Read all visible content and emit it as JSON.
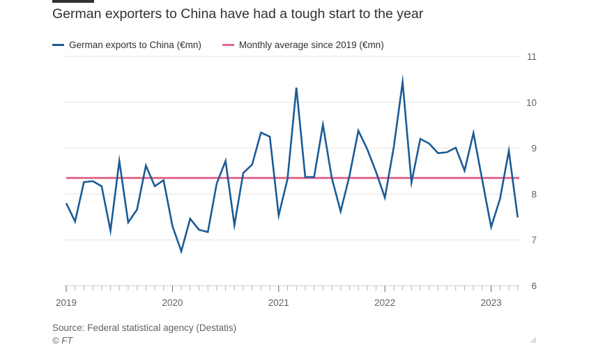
{
  "title": "German exporters to China have had a tough start to the year",
  "source": "Source: Federal statistical agency (Destatis)",
  "credit": "© FT",
  "colors": {
    "series": "#1b5b96",
    "average": "#e16a8c",
    "grid": "#e6e3df",
    "axis": "#66605c",
    "ticks": "#b8b4b0"
  },
  "chart_data": {
    "type": "line",
    "title": "German exporters to China have had a tough start to the year",
    "xlabel": "",
    "ylabel": "",
    "ylim": [
      6,
      11
    ],
    "yticks": [
      6,
      7,
      8,
      9,
      10,
      11
    ],
    "y_axis_side": "right",
    "grid": true,
    "start": "2019-01",
    "xtick_labels": [
      "2019",
      "2020",
      "2021",
      "2022",
      "2023"
    ],
    "legend_position": "top-left",
    "series": [
      {
        "name": "German exports to China (€mn)",
        "color": "#1b5b96",
        "values": [
          7.8,
          7.4,
          8.26,
          8.28,
          8.17,
          7.2,
          8.72,
          7.38,
          7.66,
          8.62,
          8.17,
          8.3,
          7.3,
          6.75,
          7.46,
          7.22,
          7.17,
          8.23,
          8.72,
          7.32,
          8.46,
          8.64,
          9.34,
          9.25,
          7.53,
          8.33,
          10.32,
          8.37,
          8.37,
          9.51,
          8.35,
          7.62,
          8.4,
          9.38,
          8.98,
          8.48,
          7.92,
          9.02,
          10.44,
          8.25,
          9.2,
          9.1,
          8.89,
          8.91,
          9.01,
          8.51,
          9.33,
          8.3,
          7.28,
          7.89,
          8.94,
          7.49
        ]
      },
      {
        "name": "Monthly average since 2019 (€mn)",
        "color": "#e16a8c",
        "values": [
          8.35
        ]
      }
    ]
  }
}
